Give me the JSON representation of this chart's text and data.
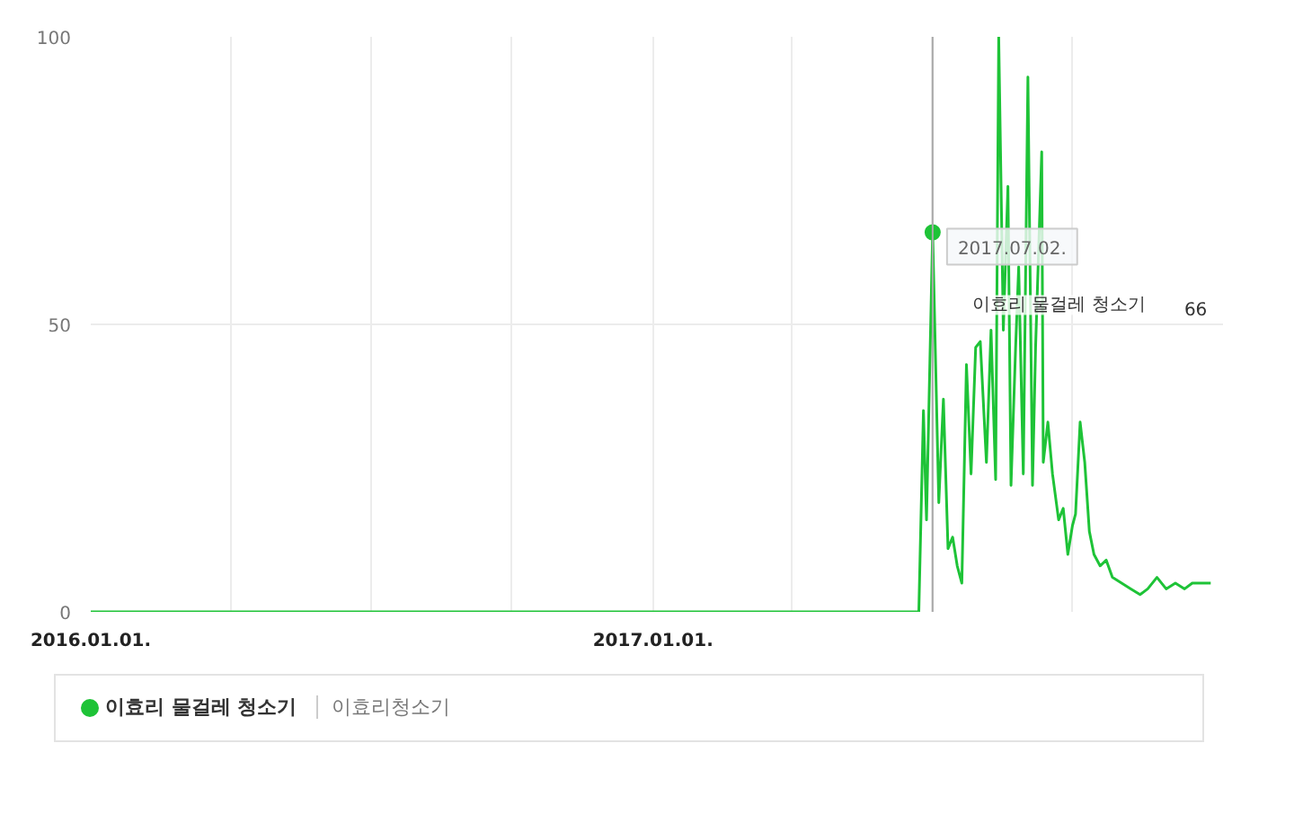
{
  "chart_data": {
    "type": "line",
    "x": [
      "2016-01-01",
      "2016-07-01",
      "2017-01-01",
      "2017-06-23",
      "2017-06-26",
      "2017-06-28",
      "2017-07-02",
      "2017-07-06",
      "2017-07-09",
      "2017-07-12",
      "2017-07-15",
      "2017-07-18",
      "2017-07-21",
      "2017-07-24",
      "2017-07-27",
      "2017-07-30",
      "2017-08-02",
      "2017-08-06",
      "2017-08-09",
      "2017-08-12",
      "2017-08-14",
      "2017-08-17",
      "2017-08-20",
      "2017-08-22",
      "2017-08-25",
      "2017-08-27",
      "2017-08-30",
      "2017-09-02",
      "2017-09-05",
      "2017-09-07",
      "2017-09-11",
      "2017-09-12",
      "2017-09-15",
      "2017-09-18",
      "2017-09-22",
      "2017-09-25",
      "2017-09-28",
      "2017-10-01",
      "2017-10-03",
      "2017-10-06",
      "2017-10-09",
      "2017-10-12",
      "2017-10-15",
      "2017-10-19",
      "2017-10-23",
      "2017-10-27",
      "2017-11-02",
      "2017-11-08",
      "2017-11-14",
      "2017-11-19",
      "2017-11-25",
      "2017-12-01",
      "2017-12-07",
      "2017-12-13",
      "2017-12-18",
      "2017-12-24",
      "2017-12-30"
    ],
    "series": [
      {
        "name": "이효리 물걸레 청소기",
        "color": "#1ec337",
        "values": [
          0,
          0,
          0,
          0,
          35,
          16,
          66,
          19,
          37,
          11,
          13,
          8,
          5,
          43,
          24,
          46,
          47,
          26,
          49,
          23,
          100,
          49,
          74,
          22,
          46,
          60,
          24,
          93,
          22,
          46,
          80,
          26,
          33,
          24,
          16,
          18,
          10,
          15,
          17,
          33,
          26,
          14,
          10,
          8,
          9,
          6,
          5,
          4,
          3,
          4,
          6,
          4,
          5,
          4,
          5,
          5,
          5
        ]
      }
    ],
    "xlim": [
      "2016-01-01",
      "2018-01-07"
    ],
    "xticks": [
      {
        "value": "2016-01-01",
        "label": "2016.01.01."
      },
      {
        "value": "2016-04-01",
        "label": null
      },
      {
        "value": "2016-07-01",
        "label": null
      },
      {
        "value": "2016-10-01",
        "label": null
      },
      {
        "value": "2017-01-01",
        "label": "2017.01.01."
      },
      {
        "value": "2017-04-01",
        "label": null
      },
      {
        "value": "2017-07-01",
        "label": null
      },
      {
        "value": "2017-10-01",
        "label": null
      }
    ],
    "ylim": [
      0,
      100
    ],
    "yticks": [
      0,
      50,
      100
    ],
    "grid": true,
    "legend": "bottom",
    "marker": "none",
    "line_style": "solid",
    "ref_lines": [
      {
        "axis": "x",
        "value": "2017-07-02",
        "label": null,
        "color": "#aaaaaa"
      }
    ],
    "annotations": [
      {
        "text": "2017.07.02.",
        "x": "2017-07-02",
        "y": 66
      },
      "66",
      "이효리청소기"
    ]
  }
}
